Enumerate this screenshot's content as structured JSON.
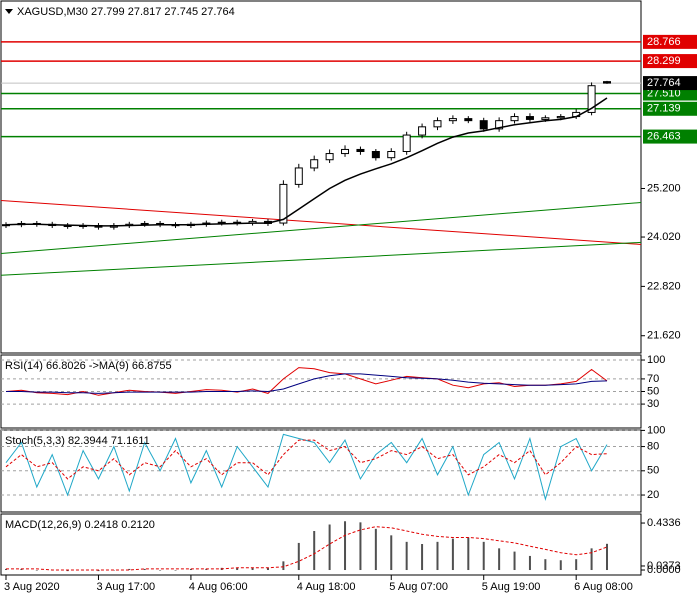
{
  "chart_data": [
    {
      "type": "candlestick",
      "header": [
        "XAGUSD,M30",
        27.799,
        27.817,
        27.745,
        27.764
      ],
      "categories": [
        "3 Aug 2020",
        null,
        null,
        null,
        null,
        null,
        "3 Aug 17:00",
        null,
        null,
        null,
        null,
        null,
        "4 Aug 06:00",
        null,
        null,
        null,
        null,
        null,
        null,
        "4 Aug 18:00",
        null,
        null,
        null,
        null,
        null,
        "5 Aug 07:00",
        null,
        null,
        null,
        null,
        null,
        "5 Aug 19:00",
        null,
        null,
        null,
        null,
        null,
        "6 Aug 08:00",
        null,
        null
      ],
      "open": [
        24.3,
        24.32,
        24.35,
        24.33,
        24.3,
        24.28,
        24.3,
        24.26,
        24.3,
        24.33,
        24.35,
        24.32,
        24.3,
        24.33,
        24.36,
        24.38,
        24.36,
        24.4,
        24.36,
        25.3,
        25.7,
        25.9,
        26.05,
        26.15,
        26.1,
        25.95,
        26.1,
        26.5,
        26.7,
        26.85,
        26.9,
        26.85,
        26.65,
        26.85,
        26.95,
        26.88,
        26.92,
        26.95,
        27.05,
        27.799
      ],
      "high": [
        24.38,
        24.41,
        24.41,
        24.39,
        24.36,
        24.36,
        24.36,
        24.36,
        24.39,
        24.41,
        24.41,
        24.38,
        24.39,
        24.42,
        24.44,
        24.44,
        24.46,
        24.46,
        25.4,
        25.8,
        26.0,
        26.15,
        26.25,
        26.22,
        26.16,
        26.18,
        26.58,
        26.78,
        26.93,
        26.98,
        26.96,
        26.92,
        26.93,
        27.03,
        27.03,
        26.98,
        27.01,
        27.13,
        27.78,
        27.817
      ],
      "low": [
        24.24,
        24.26,
        24.27,
        24.24,
        24.22,
        24.22,
        24.2,
        24.2,
        24.24,
        24.27,
        24.26,
        24.24,
        24.24,
        24.27,
        24.3,
        24.3,
        24.3,
        24.29,
        24.3,
        25.22,
        25.62,
        25.82,
        25.97,
        26.02,
        25.88,
        25.88,
        26.02,
        26.42,
        26.62,
        26.77,
        26.79,
        26.58,
        26.58,
        26.78,
        26.82,
        26.82,
        26.86,
        26.89,
        26.98,
        27.745
      ],
      "close": [
        24.32,
        24.35,
        24.33,
        24.3,
        24.28,
        24.3,
        24.26,
        24.3,
        24.33,
        24.35,
        24.32,
        24.3,
        24.33,
        24.36,
        24.38,
        24.36,
        24.4,
        24.35,
        25.3,
        25.7,
        25.9,
        26.05,
        26.15,
        26.1,
        25.95,
        26.1,
        26.5,
        26.7,
        26.85,
        26.9,
        26.85,
        26.65,
        26.85,
        26.95,
        26.88,
        26.92,
        26.95,
        27.05,
        27.7,
        27.764
      ],
      "up_color": "#ffffff",
      "down_color": "#000000",
      "wick_color": "#000000",
      "ma": {
        "color": "#000000",
        "values": [
          24.32,
          24.33,
          24.33,
          24.32,
          24.31,
          24.3,
          24.29,
          24.29,
          24.3,
          24.31,
          24.32,
          24.32,
          24.32,
          24.33,
          24.34,
          24.35,
          24.36,
          24.36,
          24.45,
          24.7,
          24.95,
          25.2,
          25.4,
          25.55,
          25.68,
          25.8,
          25.95,
          26.12,
          26.3,
          26.45,
          26.55,
          26.6,
          26.68,
          26.75,
          26.8,
          26.85,
          26.88,
          26.95,
          27.15,
          27.4
        ]
      },
      "levels": [
        {
          "value": 28.766,
          "label": "28.766",
          "color": "#e00000"
        },
        {
          "value": 28.299,
          "label": "28.299",
          "color": "#e00000"
        },
        {
          "value": 27.51,
          "label": "27.510",
          "color": "#008000"
        },
        {
          "value": 27.139,
          "label": "27.139",
          "color": "#008000"
        },
        {
          "value": 26.463,
          "label": "26.463",
          "color": "#008000"
        }
      ],
      "trendlines": [
        {
          "start": 24.91,
          "end": 23.84,
          "color": "#e00000"
        },
        {
          "start": 23.62,
          "end": 24.86,
          "color": "#008000"
        },
        {
          "start": 23.09,
          "end": 23.89,
          "color": "#008000"
        }
      ],
      "last_price_color": "#c0c0c0",
      "ylim": [
        21.2,
        29.76
      ],
      "yticks": [
        {
          "value": 25.2,
          "label": "25.200"
        },
        {
          "value": 24.02,
          "label": "24.020"
        },
        {
          "value": 22.82,
          "label": "22.820"
        },
        {
          "value": 21.62,
          "label": "21.620"
        }
      ],
      "grid": false
    },
    {
      "type": "line",
      "header": [
        "RSI(14)",
        66.8026,
        "->MA(9)",
        66.8755
      ],
      "series": [
        {
          "color": "#e00000",
          "dashed": false,
          "values": [
            50,
            52,
            48,
            47,
            45,
            50,
            44,
            48,
            52,
            50,
            49,
            47,
            50,
            53,
            52,
            49,
            54,
            47,
            70,
            88,
            86,
            80,
            78,
            70,
            62,
            68,
            74,
            72,
            70,
            60,
            56,
            62,
            64,
            58,
            60,
            60,
            62,
            66,
            85,
            66.8026
          ]
        },
        {
          "color": "#000080",
          "dashed": false,
          "values": [
            50,
            50,
            49,
            49,
            48,
            48,
            47,
            48,
            49,
            49,
            49,
            49,
            49,
            50,
            50,
            50,
            51,
            50,
            54,
            62,
            70,
            75,
            78,
            78,
            76,
            74,
            72,
            71,
            70,
            68,
            65,
            63,
            62,
            61,
            60,
            60,
            61,
            62,
            66,
            66.8755
          ]
        }
      ],
      "ylim": [
        -8,
        108
      ],
      "yticks": [
        100,
        70,
        50,
        30
      ],
      "grid": true
    },
    {
      "type": "line",
      "header": [
        "Stoch(5,3,3)",
        82.3944,
        71.1611
      ],
      "series": [
        {
          "color": "#20a8c8",
          "dashed": false,
          "values": [
            60,
            85,
            30,
            70,
            20,
            75,
            40,
            80,
            25,
            85,
            50,
            90,
            35,
            75,
            30,
            80,
            55,
            30,
            95,
            90,
            85,
            60,
            88,
            40,
            70,
            85,
            60,
            90,
            45,
            80,
            20,
            70,
            85,
            40,
            90,
            15,
            80,
            90,
            50,
            82.3944
          ]
        },
        {
          "color": "#e00000",
          "dashed": true,
          "values": [
            55,
            70,
            55,
            60,
            40,
            55,
            50,
            65,
            45,
            60,
            55,
            75,
            55,
            65,
            45,
            60,
            60,
            45,
            70,
            88,
            88,
            75,
            80,
            60,
            65,
            75,
            70,
            80,
            65,
            70,
            45,
            55,
            70,
            60,
            75,
            45,
            60,
            80,
            70,
            71.1611
          ]
        }
      ],
      "ylim": [
        -1,
        100.5
      ],
      "yticks": [
        100,
        80,
        50,
        20
      ],
      "grid": true
    },
    {
      "type": "bar",
      "header": [
        "MACD(12,26,9)",
        0.2418,
        {
          "value": 0.212,
          "label": "0.2120"
        }
      ],
      "series": [
        {
          "color": "#505050",
          "dashed": false,
          "values": [
            0.01,
            0.01,
            0,
            0,
            -0.01,
            0,
            -0.01,
            0,
            0.01,
            0.01,
            0,
            0,
            0.01,
            0.01,
            0.02,
            0.02,
            0.02,
            0.02,
            0.08,
            0.25,
            0.36,
            0.42,
            0.45,
            0.44,
            0.38,
            0.32,
            0.26,
            0.24,
            0.26,
            0.29,
            0.3,
            0.26,
            0.2,
            0.17,
            0.13,
            0.1,
            0.09,
            0.1,
            0.2,
            0.2418
          ]
        },
        {
          "color": "#e00000",
          "dashed": true,
          "values": [
            0.01,
            0.01,
            0.01,
            0,
            0,
            0,
            0,
            0,
            0,
            0.01,
            0.01,
            0.01,
            0.01,
            0.01,
            0.01,
            0.02,
            0.02,
            0.02,
            0.03,
            0.08,
            0.15,
            0.24,
            0.32,
            0.37,
            0.4,
            0.39,
            0.36,
            0.33,
            0.31,
            0.3,
            0.3,
            0.29,
            0.27,
            0.25,
            0.22,
            0.19,
            0.16,
            0.14,
            0.16,
            0.212
          ]
        }
      ],
      "ylim": [
        -0.046,
        0.517
      ],
      "yticks": [
        0.4336,
        0.0373,
        {
          "value": 0,
          "label": "0.0000"
        }
      ],
      "grid": false
    }
  ]
}
